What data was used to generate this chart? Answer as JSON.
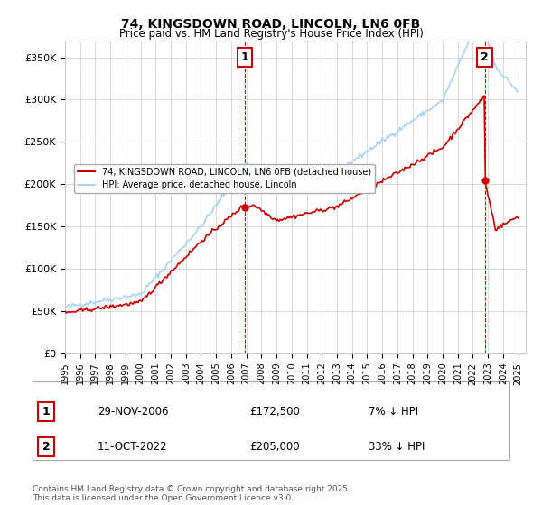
{
  "title": "74, KINGSDOWN ROAD, LINCOLN, LN6 0FB",
  "subtitle": "Price paid vs. HM Land Registry's House Price Index (HPI)",
  "ylabel_ticks": [
    "£0",
    "£50K",
    "£100K",
    "£150K",
    "£200K",
    "£250K",
    "£300K",
    "£350K"
  ],
  "ylim": [
    0,
    370000
  ],
  "xlim_start": 1995.0,
  "xlim_end": 2025.5,
  "hpi_color": "#aad4f5",
  "price_color": "#cc0000",
  "marker1_date": 2006.91,
  "marker1_price": 172500,
  "marker2_date": 2022.78,
  "marker2_price": 205000,
  "vline_color": "#cc0000",
  "grid_color": "#cccccc",
  "legend_label1": "74, KINGSDOWN ROAD, LINCOLN, LN6 0FB (detached house)",
  "legend_label2": "HPI: Average price, detached house, Lincoln",
  "annotation1_num": "1",
  "annotation1_date": "29-NOV-2006",
  "annotation1_price": "£172,500",
  "annotation1_hpi": "7% ↓ HPI",
  "annotation2_num": "2",
  "annotation2_date": "11-OCT-2022",
  "annotation2_price": "£205,000",
  "annotation2_hpi": "33% ↓ HPI",
  "footnote": "Contains HM Land Registry data © Crown copyright and database right 2025.\nThis data is licensed under the Open Government Licence v3.0.",
  "background_color": "#ffffff",
  "plot_bg_color": "#ffffff"
}
